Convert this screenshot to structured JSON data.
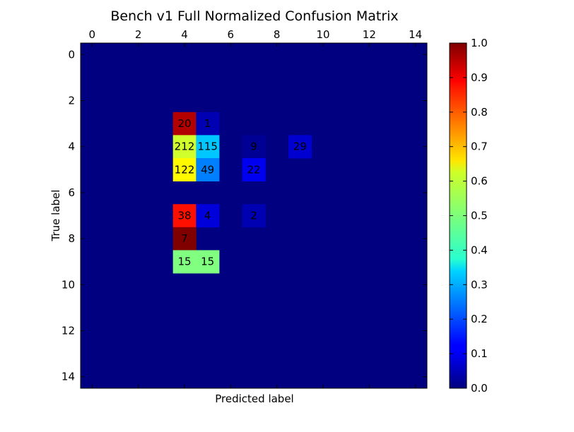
{
  "chart_data": {
    "type": "heatmap",
    "title": "Bench v1 Full Normalized Confusion Matrix",
    "xlabel": "Predicted label",
    "ylabel": "True label",
    "size": 15,
    "x_ticks": [
      0,
      2,
      4,
      6,
      8,
      10,
      12,
      14
    ],
    "y_ticks": [
      0,
      2,
      4,
      6,
      8,
      10,
      12,
      14
    ],
    "xlim": [
      -0.5,
      14.5
    ],
    "ylim": [
      -0.5,
      14.5
    ],
    "colormap": "jet",
    "colorbar": {
      "range": [
        0.0,
        1.0
      ],
      "ticks": [
        "0.0",
        "0.1",
        "0.2",
        "0.3",
        "0.4",
        "0.5",
        "0.6",
        "0.7",
        "0.8",
        "0.9",
        "1.0"
      ]
    },
    "background_value": 0.0,
    "cells": [
      {
        "row": 3,
        "col": 4,
        "label": "20",
        "value": 0.95
      },
      {
        "row": 3,
        "col": 5,
        "label": "1",
        "value": 0.05
      },
      {
        "row": 4,
        "col": 4,
        "label": "212",
        "value": 0.58
      },
      {
        "row": 4,
        "col": 5,
        "label": "115",
        "value": 0.32
      },
      {
        "row": 4,
        "col": 7,
        "label": "9",
        "value": 0.02
      },
      {
        "row": 4,
        "col": 9,
        "label": "29",
        "value": 0.08
      },
      {
        "row": 5,
        "col": 4,
        "label": "122",
        "value": 0.63
      },
      {
        "row": 5,
        "col": 5,
        "label": "49",
        "value": 0.25
      },
      {
        "row": 5,
        "col": 7,
        "label": "22",
        "value": 0.11
      },
      {
        "row": 7,
        "col": 4,
        "label": "38",
        "value": 0.86
      },
      {
        "row": 7,
        "col": 5,
        "label": "4",
        "value": 0.09
      },
      {
        "row": 7,
        "col": 7,
        "label": "2",
        "value": 0.05
      },
      {
        "row": 8,
        "col": 4,
        "label": "7",
        "value": 1.0
      },
      {
        "row": 9,
        "col": 4,
        "label": "15",
        "value": 0.5
      },
      {
        "row": 9,
        "col": 5,
        "label": "15",
        "value": 0.5
      }
    ]
  }
}
